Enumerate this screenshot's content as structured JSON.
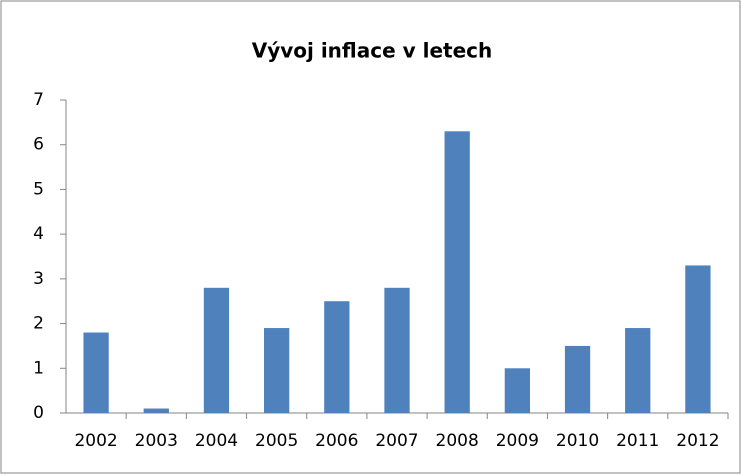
{
  "chart_data": {
    "type": "bar",
    "title": "Vývoj inflace v letech",
    "categories": [
      "2002",
      "2003",
      "2004",
      "2005",
      "2006",
      "2007",
      "2008",
      "2009",
      "2010",
      "2011",
      "2012"
    ],
    "values": [
      1.8,
      0.1,
      2.8,
      1.9,
      2.5,
      2.8,
      6.3,
      1.0,
      1.5,
      1.9,
      3.3
    ],
    "color": "#4f81bd",
    "ylim": [
      0,
      7
    ],
    "yticks": [
      0,
      1,
      2,
      3,
      4,
      5,
      6,
      7
    ],
    "grid": false
  }
}
